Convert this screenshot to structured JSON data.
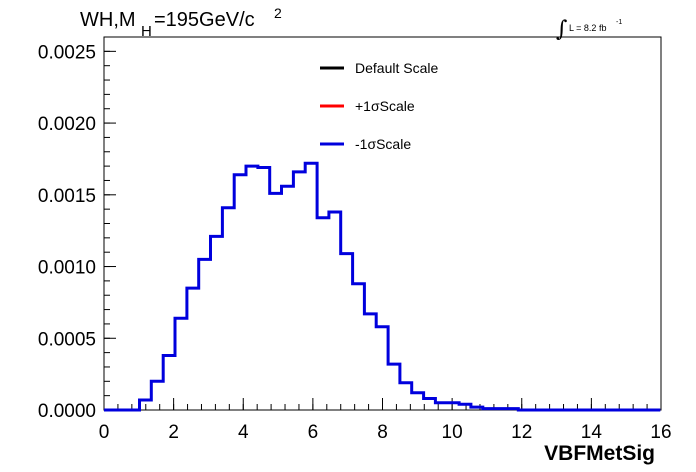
{
  "chart_data": {
    "type": "line",
    "title": {
      "prefix": "WH,M",
      "subscript": "H",
      "main": "=195GeV/c",
      "superscript": "2"
    },
    "lumi_label": {
      "integral": "∫",
      "text": "L = 8.2 fb",
      "superscript": "-1"
    },
    "xlabel": "VBFMetSig",
    "ylabel": "",
    "xlim": [
      0,
      16
    ],
    "ylim": [
      0,
      0.0026
    ],
    "x_ticks": [
      "0",
      "2",
      "4",
      "6",
      "8",
      "10",
      "12",
      "14",
      "16"
    ],
    "y_ticks": [
      "0.0000",
      "0.0005",
      "0.0010",
      "0.0015",
      "0.0020",
      "0.0025"
    ],
    "bin_width": 0.34,
    "bin_edges_start": 0,
    "legend": {
      "placement": "top-center",
      "entries": [
        {
          "label": "Default Scale",
          "color": "#000000"
        },
        {
          "label": "+1σScale",
          "color": "#ff0000"
        },
        {
          "label": "-1σScale",
          "color": "#0000dd"
        }
      ]
    },
    "series": [
      {
        "name": "-1σScale",
        "color": "#0000dd",
        "values": [
          0,
          0,
          0,
          7e-05,
          0.0002,
          0.00038,
          0.00064,
          0.00085,
          0.00105,
          0.00121,
          0.00141,
          0.00164,
          0.0017,
          0.00169,
          0.00151,
          0.00156,
          0.00166,
          0.00172,
          0.00134,
          0.00138,
          0.00109,
          0.00088,
          0.00067,
          0.00058,
          0.00032,
          0.00019,
          0.00012,
          8e-05,
          5e-05,
          5e-05,
          4e-05,
          2e-05,
          1e-05,
          1e-05,
          1e-05,
          0.0,
          0.0,
          0.0,
          0.0,
          0.0,
          0.0,
          0.0,
          0.0,
          0.0,
          0.0,
          0.0,
          0.0
        ]
      }
    ]
  }
}
